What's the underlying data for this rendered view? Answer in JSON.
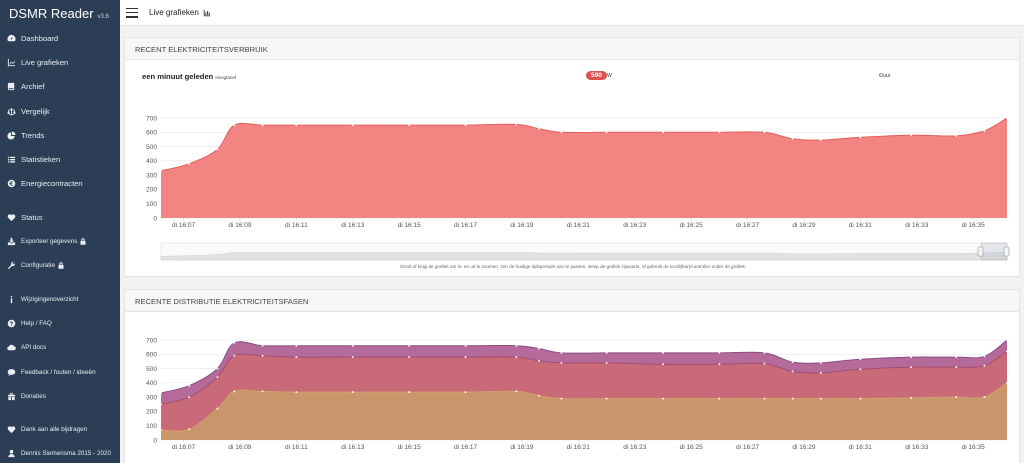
{
  "app": {
    "name": "DSMR Reader",
    "version": "v3.6"
  },
  "sidebar": {
    "items": [
      {
        "label": "Dashboard",
        "icon": "dashboard-icon"
      },
      {
        "label": "Live grafieken",
        "icon": "line-chart-icon"
      },
      {
        "label": "Archief",
        "icon": "book-icon"
      },
      {
        "label": "Vergelijk",
        "icon": "balance-icon"
      },
      {
        "label": "Trends",
        "icon": "pie-chart-icon"
      },
      {
        "label": "Statistieken",
        "icon": "list-icon"
      },
      {
        "label": "Energiecontracten",
        "icon": "euro-icon"
      },
      {
        "label": "Status",
        "icon": "heartbeat-icon"
      },
      {
        "label": "Exporteer gegevens",
        "icon": "download-icon",
        "locked": true
      },
      {
        "label": "Configuratie",
        "icon": "wrench-icon",
        "locked": true
      },
      {
        "label": "Wijzigingenoverzicht",
        "icon": "info-icon"
      },
      {
        "label": "Help / FAQ",
        "icon": "question-icon"
      },
      {
        "label": "API docs",
        "icon": "cloud-icon"
      },
      {
        "label": "Feedback / fouten / ideeën",
        "icon": "comment-icon"
      },
      {
        "label": "Donaties",
        "icon": "gift-icon"
      },
      {
        "label": "Dank aan alle bijdragen",
        "icon": "heart-icon"
      },
      {
        "label": "Dennis Siemensma 2015 - 2020",
        "icon": "user-icon"
      }
    ]
  },
  "topbar": {
    "title": "Live grafieken",
    "title_icon": "bar-chart-icon"
  },
  "panel_usage": {
    "title": "RECENT ELEKTRICITEITSVERBRUIK",
    "ago": "een minuut geleden",
    "tariff": "Hoogtarief",
    "value": "590",
    "unit": "W",
    "cost_unit": "€/uur",
    "hint": "Scroll of knijp de grafiek om in- en uit te zoomen. Om de huidige tijdsperiode aan te passen, sleep de grafiek zijwaarts, of gebruik de scroll(bar)/controller onder de grafiek."
  },
  "panel_phases": {
    "title": "RECENTE DISTRIBUTIE ELEKTRICITEITSFASEN"
  },
  "colors": {
    "sidebar": "#2b3e55",
    "usage_fill": "#f28482",
    "usage_line": "#e65c5a",
    "phase_top": "#b56b99",
    "phase_mid": "#c96a78",
    "phase_low": "#c8966a",
    "badge": "#d9534f"
  },
  "chart_data": [
    {
      "type": "area",
      "title": "RECENT ELEKTRICITEITSVERBRUIK",
      "x_ticks": [
        "di 16:07",
        "di 16:09",
        "di 16:11",
        "di 16:13",
        "di 16:15",
        "di 16:17",
        "di 16:19",
        "di 16:21",
        "di 16:23",
        "di 16:25",
        "di 16:27",
        "di 16:29",
        "di 16:31",
        "di 16:33",
        "di 16:35"
      ],
      "y_ticks": [
        0,
        100,
        200,
        300,
        400,
        500,
        600,
        700
      ],
      "ylim": [
        0,
        700
      ],
      "xlim_minutes": [
        6.2,
        36.2
      ],
      "x_minutes": [
        6.2,
        7.2,
        8.2,
        8.8,
        9.8,
        11,
        13,
        15,
        17,
        18.8,
        19.6,
        20.4,
        22,
        24,
        26,
        27.6,
        28.6,
        29.6,
        31,
        32.8,
        34.4,
        35.4,
        36.2
      ],
      "series": [
        {
          "values": [
            330,
            380,
            480,
            650,
            650,
            650,
            650,
            650,
            650,
            655,
            625,
            600,
            600,
            600,
            600,
            600,
            555,
            545,
            565,
            580,
            575,
            610,
            700
          ]
        }
      ]
    },
    {
      "type": "area",
      "title": "RECENTE DISTRIBUTIE ELEKTRICITEITSFASEN",
      "x_ticks": [
        "di 16:07",
        "di 16:09",
        "di 16:11",
        "di 16:13",
        "di 16:15",
        "di 16:17",
        "di 16:19",
        "di 16:21",
        "di 16:23",
        "di 16:25",
        "di 16:27",
        "di 16:29",
        "di 16:31",
        "di 16:33",
        "di 16:35"
      ],
      "y_ticks": [
        0,
        100,
        200,
        300,
        400,
        500,
        600,
        700
      ],
      "ylim": [
        0,
        700
      ],
      "xlim_minutes": [
        6.2,
        36.2
      ],
      "x_minutes": [
        6.2,
        7.2,
        8.2,
        8.8,
        9.8,
        11,
        13,
        15,
        17,
        18.8,
        19.6,
        20.4,
        22,
        24,
        26,
        27.6,
        28.6,
        29.6,
        31,
        32.8,
        34.4,
        35.4,
        36.2
      ],
      "series": [
        {
          "values": [
            70,
            75,
            220,
            340,
            340,
            335,
            335,
            335,
            335,
            340,
            310,
            290,
            290,
            290,
            290,
            290,
            290,
            290,
            290,
            295,
            300,
            300,
            400
          ]
        },
        {
          "values": [
            250,
            300,
            440,
            590,
            590,
            580,
            580,
            580,
            580,
            580,
            555,
            540,
            540,
            530,
            530,
            535,
            480,
            470,
            495,
            510,
            510,
            520,
            620
          ]
        },
        {
          "values": [
            330,
            380,
            500,
            680,
            660,
            660,
            660,
            660,
            660,
            660,
            640,
            610,
            610,
            610,
            610,
            610,
            545,
            540,
            565,
            580,
            580,
            585,
            700
          ]
        }
      ]
    }
  ]
}
